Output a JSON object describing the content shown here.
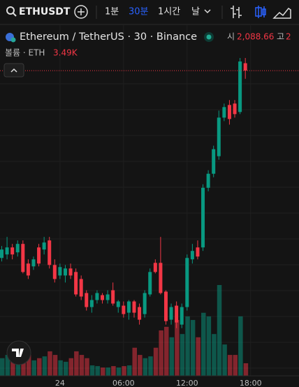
{
  "toolbar": {
    "symbol": "ETHUSDT",
    "intervals": [
      "1분",
      "30분",
      "1시간",
      "날"
    ],
    "active_interval": 1
  },
  "legend": {
    "title": "Ethereum / TetherUS · 30 · Binance",
    "open_label": "시",
    "open_value": "2,088.66",
    "high_label": "고",
    "high_value": "2",
    "volume_label": "볼륨 · ETH",
    "volume_value": "3.49K"
  },
  "chart_data": {
    "type": "candlestick",
    "categories": [
      null,
      null,
      null,
      null,
      null,
      null,
      null,
      null,
      null,
      null,
      null,
      "24",
      null,
      null,
      null,
      null,
      null,
      null,
      null,
      null,
      null,
      null,
      null,
      "06:00",
      null,
      null,
      null,
      null,
      null,
      null,
      null,
      null,
      null,
      null,
      null,
      "12:00",
      null,
      null,
      null,
      null,
      null,
      null,
      null,
      null,
      null,
      null,
      null,
      "18:00"
    ],
    "ohlc": [
      [
        2005.4,
        2010.5,
        2003.9,
        2009.0
      ],
      [
        2006.9,
        2014.4,
        2004.8,
        2009.9
      ],
      [
        2009.9,
        2011.4,
        2004.8,
        2006.9
      ],
      [
        2007.8,
        2012.9,
        2006.0,
        2011.4
      ],
      [
        2011.4,
        2012.9,
        1998.8,
        1999.4
      ],
      [
        2003.0,
        2004.8,
        1996.4,
        1997.9
      ],
      [
        2001.8,
        2006.0,
        2000.3,
        2004.8
      ],
      [
        2009.9,
        2011.4,
        2001.8,
        2003.0
      ],
      [
        2009.0,
        2014.4,
        2006.9,
        2012.0
      ],
      [
        2012.9,
        2014.4,
        2000.9,
        2002.4
      ],
      [
        2002.4,
        2004.8,
        1994.9,
        1996.4
      ],
      [
        1997.9,
        2003.0,
        1996.4,
        2001.5
      ],
      [
        1997.9,
        2002.4,
        1994.9,
        2000.9
      ],
      [
        2000.9,
        2003.0,
        1996.4,
        1997.9
      ],
      [
        1999.4,
        2000.9,
        1988.9,
        1989.8
      ],
      [
        1996.4,
        1997.9,
        1987.4,
        1988.9
      ],
      [
        1990.4,
        1991.6,
        1982.9,
        1984.4
      ],
      [
        1984.4,
        1989.5,
        1982.0,
        1987.4
      ],
      [
        1987.4,
        1991.6,
        1985.9,
        1990.4
      ],
      [
        1989.5,
        1990.4,
        1985.9,
        1987.4
      ],
      [
        1987.4,
        1991.6,
        1985.9,
        1989.8
      ],
      [
        1991.6,
        1994.9,
        1985.0,
        1985.9
      ],
      [
        1984.4,
        1987.4,
        1982.0,
        1986.8
      ],
      [
        1985.0,
        1986.8,
        1979.9,
        1981.4
      ],
      [
        1982.0,
        1987.4,
        1979.0,
        1986.8
      ],
      [
        1986.8,
        1987.4,
        1979.9,
        1982.0
      ],
      [
        1984.4,
        1985.9,
        1976.9,
        1979.0
      ],
      [
        1981.4,
        1991.6,
        1979.9,
        1990.4
      ],
      [
        1989.8,
        2000.9,
        1988.9,
        1999.4
      ],
      [
        2003.3,
        2004.8,
        1998.8,
        1999.4
      ],
      [
        2003.3,
        2014.4,
        1989.8,
        1990.4
      ],
      [
        1991.0,
        1991.6,
        1976.9,
        1978.4
      ],
      [
        1979.0,
        1985.9,
        1976.9,
        1984.4
      ],
      [
        1985.0,
        1986.8,
        1975.4,
        1977.8
      ],
      [
        1976.9,
        1985.9,
        1975.4,
        1984.4
      ],
      [
        1984.4,
        2006.9,
        1982.9,
        2005.4
      ],
      [
        2004.8,
        2011.4,
        2003.0,
        2008.4
      ],
      [
        2009.9,
        2012.9,
        2004.8,
        2006.0
      ],
      [
        2009.9,
        2036.9,
        2008.4,
        2035.4
      ],
      [
        2035.4,
        2042.9,
        2033.9,
        2041.4
      ],
      [
        2041.4,
        2053.4,
        2039.9,
        2051.9
      ],
      [
        2048.9,
        2068.4,
        2047.4,
        2065.4
      ],
      [
        2065.4,
        2071.4,
        2063.9,
        2069.9
      ],
      [
        2070.8,
        2072.9,
        2062.4,
        2064.8
      ],
      [
        2071.4,
        2072.9,
        2065.4,
        2066.9
      ],
      [
        2067.8,
        2090.9,
        2066.9,
        2089.4
      ],
      [
        2088.66,
        2090.9,
        2082.0,
        2085.5
      ],
      null
    ],
    "volumes": [
      4.9,
      5.8,
      3.9,
      5.4,
      6.8,
      5.8,
      4.3,
      4.9,
      5.4,
      6.8,
      5.8,
      4.3,
      3.9,
      4.9,
      6.8,
      5.8,
      4.9,
      2.9,
      2.7,
      2.3,
      2.3,
      2.7,
      2.3,
      2.7,
      2.9,
      7.8,
      5.8,
      4.9,
      5.4,
      7.8,
      12.6,
      13.6,
      10.7,
      15.5,
      11.6,
      16.5,
      15.5,
      10.7,
      17.5,
      16.5,
      11.6,
      25.2,
      8.7,
      5.8,
      5.8,
      16.5,
      3.49,
      null
    ],
    "ylim": [
      1955,
      2090
    ],
    "volume_ylim": [
      0,
      25.2
    ],
    "price_line": 2085.5,
    "up_color": "#089981",
    "down_color": "#f23645",
    "grid": true
  }
}
